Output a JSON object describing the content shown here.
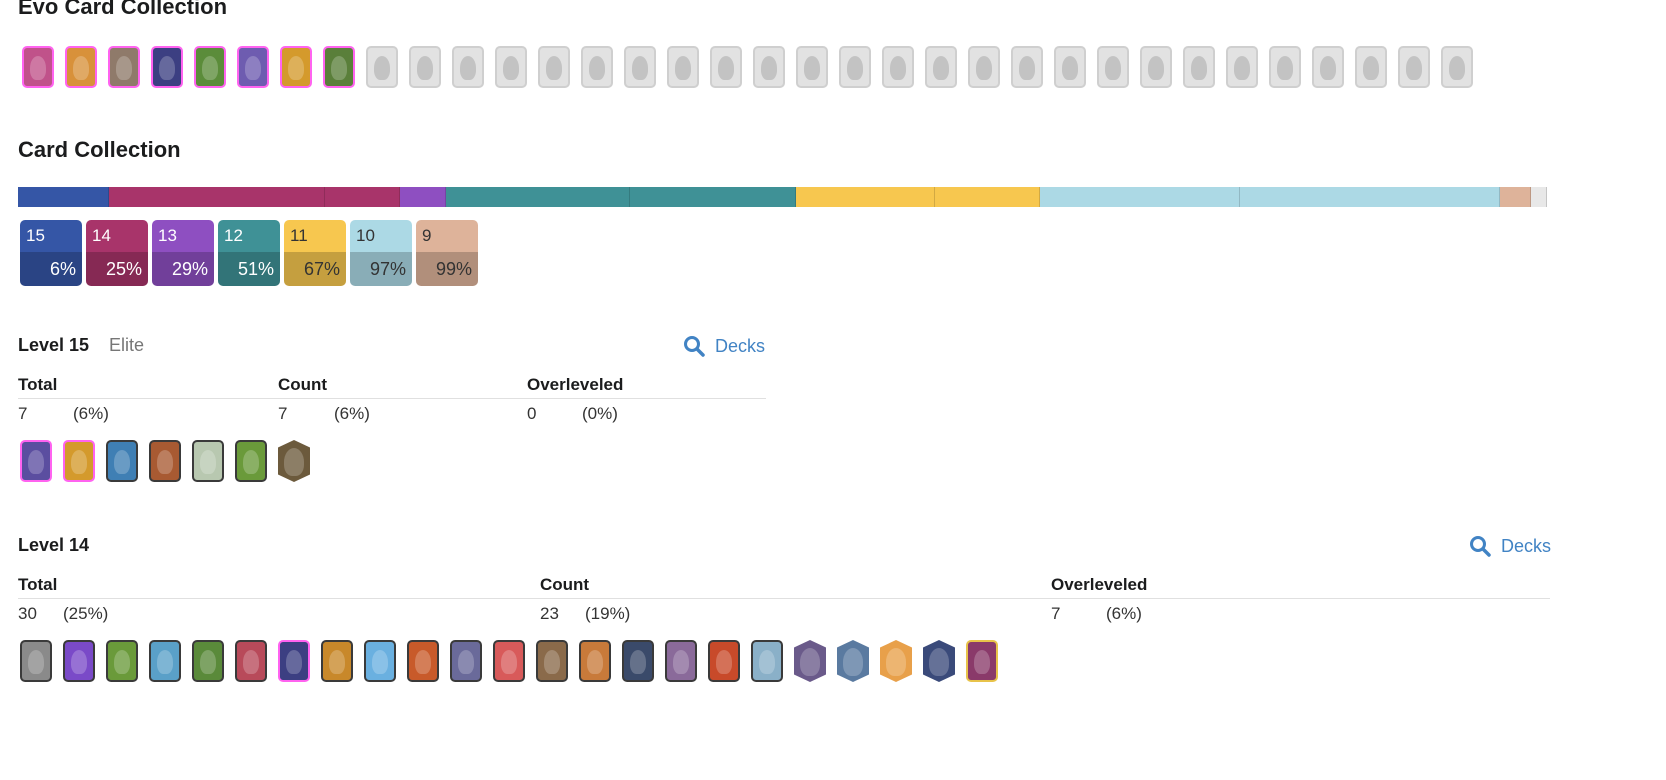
{
  "evo_section": {
    "title": "Evo Card Collection",
    "cards": [
      {
        "owned": true,
        "color": "#c0528a"
      },
      {
        "owned": true,
        "color": "#d8913a"
      },
      {
        "owned": true,
        "color": "#8f7a6a"
      },
      {
        "owned": true,
        "color": "#3c3f82"
      },
      {
        "owned": true,
        "color": "#5b8c3a"
      },
      {
        "owned": true,
        "color": "#6e5cb0"
      },
      {
        "owned": true,
        "color": "#d49a2c"
      },
      {
        "owned": true,
        "color": "#5a7f3a"
      },
      {
        "owned": false
      },
      {
        "owned": false
      },
      {
        "owned": false
      },
      {
        "owned": false
      },
      {
        "owned": false
      },
      {
        "owned": false
      },
      {
        "owned": false
      },
      {
        "owned": false
      },
      {
        "owned": false
      },
      {
        "owned": false
      },
      {
        "owned": false
      },
      {
        "owned": false
      },
      {
        "owned": false
      },
      {
        "owned": false
      },
      {
        "owned": false
      },
      {
        "owned": false
      },
      {
        "owned": false
      },
      {
        "owned": false
      },
      {
        "owned": false
      },
      {
        "owned": false
      },
      {
        "owned": false
      },
      {
        "owned": false
      },
      {
        "owned": false
      },
      {
        "owned": false
      },
      {
        "owned": false
      },
      {
        "owned": false
      }
    ]
  },
  "collection": {
    "title": "Card Collection",
    "bar_segments": [
      {
        "color": "#3556a6",
        "fraction": 0.056
      },
      {
        "color": "#a8346a",
        "fraction": 0.132
      },
      {
        "color": "#a8346a",
        "fraction": 0.046
      },
      {
        "color": "#8e4fc1",
        "fraction": 0.028
      },
      {
        "color": "#3f9196",
        "fraction": 0.113
      },
      {
        "color": "#3f9196",
        "fraction": 0.102
      },
      {
        "color": "#f7c74f",
        "fraction": 0.085
      },
      {
        "color": "#f7c74f",
        "fraction": 0.064
      },
      {
        "color": "#acd9e5",
        "fraction": 0.123
      },
      {
        "color": "#acd9e5",
        "fraction": 0.159
      },
      {
        "color": "#deb39a",
        "fraction": 0.019
      },
      {
        "color": "#e8e8e8",
        "fraction": 0.01
      }
    ],
    "badges": [
      {
        "level": "15",
        "pct": "6%",
        "color": "#3556a6"
      },
      {
        "level": "14",
        "pct": "25%",
        "color": "#a8346a"
      },
      {
        "level": "13",
        "pct": "29%",
        "color": "#8e4fc1"
      },
      {
        "level": "12",
        "pct": "51%",
        "color": "#3f9196"
      },
      {
        "level": "11",
        "pct": "67%",
        "color": "#f7c74f",
        "dark": true
      },
      {
        "level": "10",
        "pct": "97%",
        "color": "#acd9e5",
        "dark": true
      },
      {
        "level": "9",
        "pct": "99%",
        "color": "#deb39a",
        "dark": true
      }
    ]
  },
  "level15": {
    "title": "Level 15",
    "subtitle": "Elite",
    "decks_label": "Decks",
    "headers": {
      "total": "Total",
      "count": "Count",
      "overleveled": "Overleveled"
    },
    "total": "7",
    "total_pct": "(6%)",
    "count": "7",
    "count_pct": "(6%)",
    "over": "0",
    "over_pct": "(0%)",
    "cards": [
      {
        "color": "#5b4ea0",
        "style": "evo"
      },
      {
        "color": "#d49a2c",
        "style": "evo"
      },
      {
        "color": "#3f7fb4",
        "style": ""
      },
      {
        "color": "#a85a32",
        "style": ""
      },
      {
        "color": "#b8c8b0",
        "style": ""
      },
      {
        "color": "#6a9a3a",
        "style": ""
      },
      {
        "color": "#6c5a3c",
        "style": "hex"
      }
    ]
  },
  "level14": {
    "title": "Level 14",
    "decks_label": "Decks",
    "headers": {
      "total": "Total",
      "count": "Count",
      "overleveled": "Overleveled"
    },
    "total": "30",
    "total_pct": "(25%)",
    "count": "23",
    "count_pct": "(19%)",
    "over": "7",
    "over_pct": "(6%)",
    "cards": [
      {
        "color": "#8a8a8a",
        "style": ""
      },
      {
        "color": "#7a4ac8",
        "style": ""
      },
      {
        "color": "#6a9a3a",
        "style": ""
      },
      {
        "color": "#5aa0c8",
        "style": ""
      },
      {
        "color": "#5a8a3a",
        "style": ""
      },
      {
        "color": "#b84a5a",
        "style": ""
      },
      {
        "color": "#3c3f82",
        "style": "evo"
      },
      {
        "color": "#c8882a",
        "style": ""
      },
      {
        "color": "#6ab0e0",
        "style": ""
      },
      {
        "color": "#c85a2a",
        "style": ""
      },
      {
        "color": "#6a6a9a",
        "style": ""
      },
      {
        "color": "#d85a5a",
        "style": ""
      },
      {
        "color": "#8a6a4a",
        "style": ""
      },
      {
        "color": "#c87a3a",
        "style": ""
      },
      {
        "color": "#3a4a6a",
        "style": ""
      },
      {
        "color": "#8a6a9a",
        "style": ""
      },
      {
        "color": "#c84a2a",
        "style": ""
      },
      {
        "color": "#8ab0c8",
        "style": ""
      },
      {
        "color": "#6a5a8a",
        "style": "hex"
      },
      {
        "color": "#5a7aa0",
        "style": "hex"
      },
      {
        "color": "#e8a04a",
        "style": "hex"
      },
      {
        "color": "#3a4a7a",
        "style": "hex"
      },
      {
        "color": "#8a3a6a",
        "style": "gold"
      }
    ]
  }
}
